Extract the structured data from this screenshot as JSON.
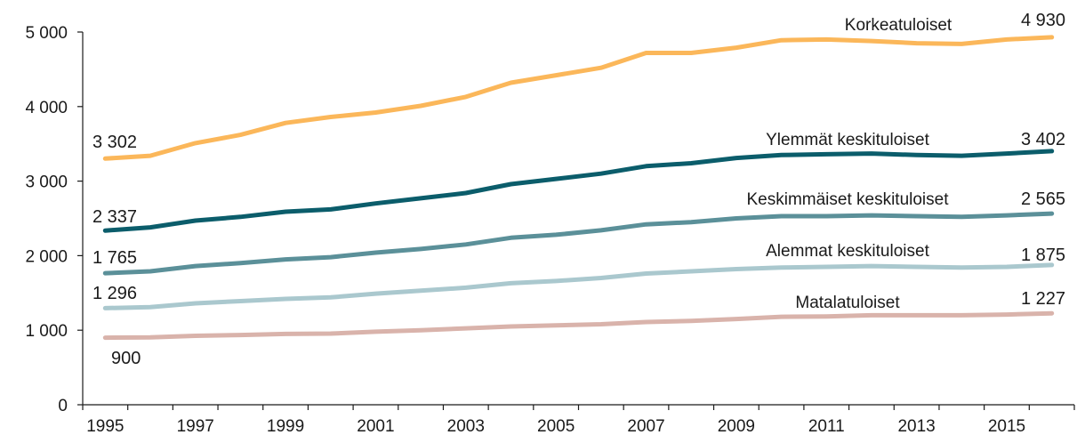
{
  "chart_data": {
    "type": "line",
    "title": "",
    "xlabel": "",
    "ylabel": "",
    "x": [
      1995,
      1996,
      1997,
      1998,
      1999,
      2000,
      2001,
      2002,
      2003,
      2004,
      2005,
      2006,
      2007,
      2008,
      2009,
      2010,
      2011,
      2012,
      2013,
      2014,
      2015,
      2016
    ],
    "xtick_labels": [
      "1995",
      "1997",
      "1999",
      "2001",
      "2003",
      "2005",
      "2007",
      "2009",
      "2011",
      "2013",
      "2015"
    ],
    "ytick_values": [
      0,
      1000,
      2000,
      3000,
      4000,
      5000
    ],
    "ytick_labels": [
      "0",
      "1 000",
      "2 000",
      "3 000",
      "4 000",
      "5 000"
    ],
    "xlim": [
      1994.5,
      2016.5
    ],
    "ylim": [
      0,
      5000
    ],
    "grid": false,
    "legend": "none (series labeled inline)",
    "series": [
      {
        "name": "Korkeatuloiset",
        "color": "#fbb75a",
        "values": [
          3302,
          3340,
          3510,
          3620,
          3780,
          3860,
          3920,
          4010,
          4130,
          4320,
          4420,
          4520,
          4720,
          4720,
          4790,
          4890,
          4900,
          4880,
          4850,
          4840,
          4900,
          4930
        ],
        "start_label": "3 302",
        "end_label": "4 930"
      },
      {
        "name": "Ylemmät keskituloiset",
        "color": "#0b5d6b",
        "values": [
          2337,
          2380,
          2470,
          2520,
          2590,
          2620,
          2700,
          2770,
          2840,
          2960,
          3030,
          3100,
          3200,
          3240,
          3310,
          3350,
          3360,
          3370,
          3350,
          3340,
          3370,
          3402
        ],
        "start_label": "2 337",
        "end_label": "3 402"
      },
      {
        "name": "Keskimmäiset keskituloiset",
        "color": "#5b9099",
        "values": [
          1765,
          1790,
          1860,
          1900,
          1950,
          1980,
          2040,
          2090,
          2150,
          2240,
          2280,
          2340,
          2420,
          2450,
          2500,
          2530,
          2530,
          2540,
          2530,
          2520,
          2540,
          2565
        ],
        "start_label": "1 765",
        "end_label": "2 565"
      },
      {
        "name": "Alemmat keskituloiset",
        "color": "#aac8ce",
        "values": [
          1296,
          1310,
          1360,
          1390,
          1420,
          1440,
          1490,
          1530,
          1570,
          1630,
          1660,
          1700,
          1760,
          1790,
          1820,
          1840,
          1850,
          1860,
          1850,
          1840,
          1850,
          1875
        ],
        "start_label": "1 296",
        "end_label": "1 875"
      },
      {
        "name": "Matalatuloiset",
        "color": "#d9b3ab",
        "values": [
          900,
          905,
          925,
          935,
          950,
          955,
          980,
          1000,
          1025,
          1050,
          1065,
          1080,
          1110,
          1125,
          1150,
          1180,
          1185,
          1200,
          1200,
          1200,
          1210,
          1227
        ],
        "start_label": "900",
        "end_label": "1 227"
      }
    ]
  }
}
